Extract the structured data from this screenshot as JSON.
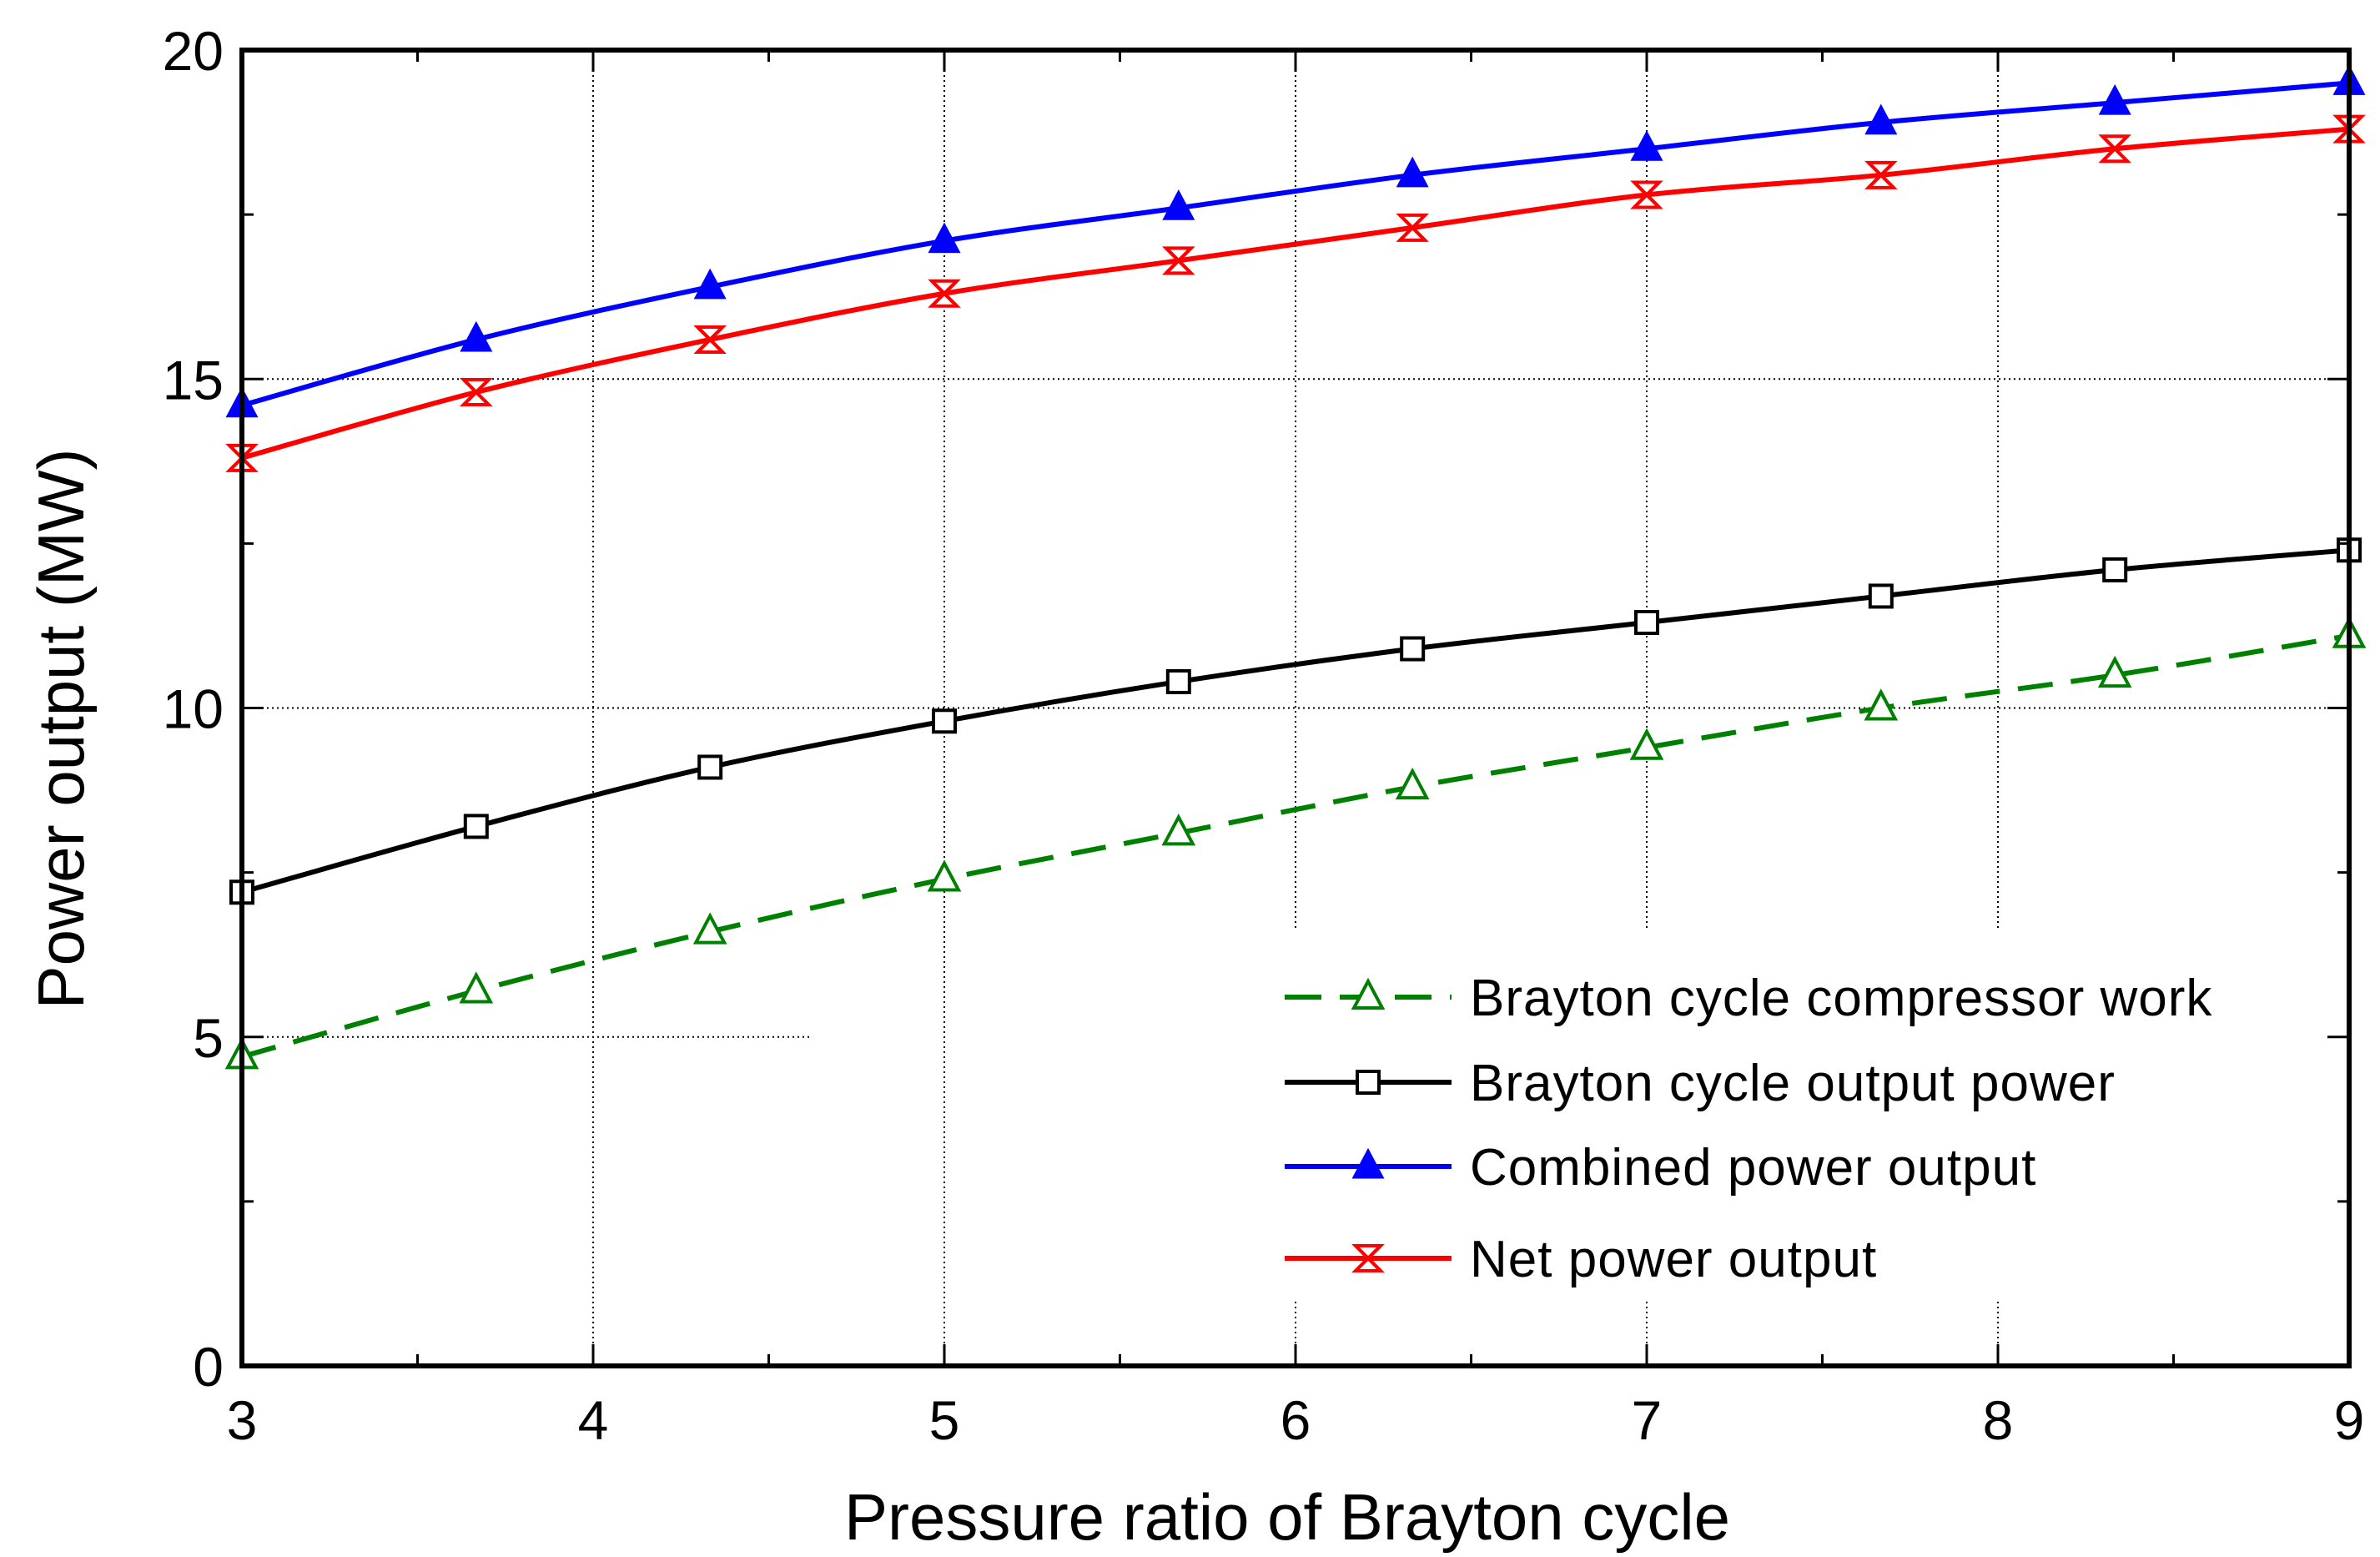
{
  "chart_data": {
    "type": "line",
    "title": "",
    "xlabel": "Pressure ratio of Brayton cycle",
    "ylabel": "Power output (MW)",
    "xlim": [
      3,
      9
    ],
    "ylim": [
      0,
      20
    ],
    "xticks": [
      3,
      4,
      5,
      6,
      7,
      8,
      9
    ],
    "yticks": [
      0,
      5,
      10,
      15,
      20
    ],
    "xtick_labels": [
      "3",
      "4",
      "5",
      "6",
      "7",
      "8",
      "9"
    ],
    "ytick_labels": [
      "0",
      "5",
      "10",
      "15",
      "20"
    ],
    "grid": true,
    "legend_position": "bottom-right",
    "x": [
      3,
      3.667,
      4.333,
      5,
      5.667,
      6.333,
      7,
      7.667,
      8.333,
      9
    ],
    "series": [
      {
        "name": "Brayton cycle compressor work",
        "color": "#008000",
        "line_style": "dashed",
        "marker": "open-triangle",
        "values": [
          4.7,
          5.7,
          6.6,
          7.4,
          8.1,
          8.8,
          9.4,
          10.0,
          10.5,
          11.1
        ]
      },
      {
        "name": "Brayton cycle output power",
        "color": "#000000",
        "line_style": "solid",
        "marker": "open-square",
        "values": [
          7.2,
          8.2,
          9.1,
          9.8,
          10.4,
          10.9,
          11.3,
          11.7,
          12.1,
          12.4
        ]
      },
      {
        "name": "Combined power output",
        "color": "#0000ff",
        "line_style": "solid",
        "marker": "filled-triangle",
        "values": [
          14.6,
          15.6,
          16.4,
          17.1,
          17.6,
          18.1,
          18.5,
          18.9,
          19.2,
          19.5
        ]
      },
      {
        "name": "Net power output",
        "color": "#ff0000",
        "line_style": "solid",
        "marker": "hourglass",
        "values": [
          13.8,
          14.8,
          15.6,
          16.3,
          16.8,
          17.3,
          17.8,
          18.1,
          18.5,
          18.8
        ]
      }
    ]
  }
}
